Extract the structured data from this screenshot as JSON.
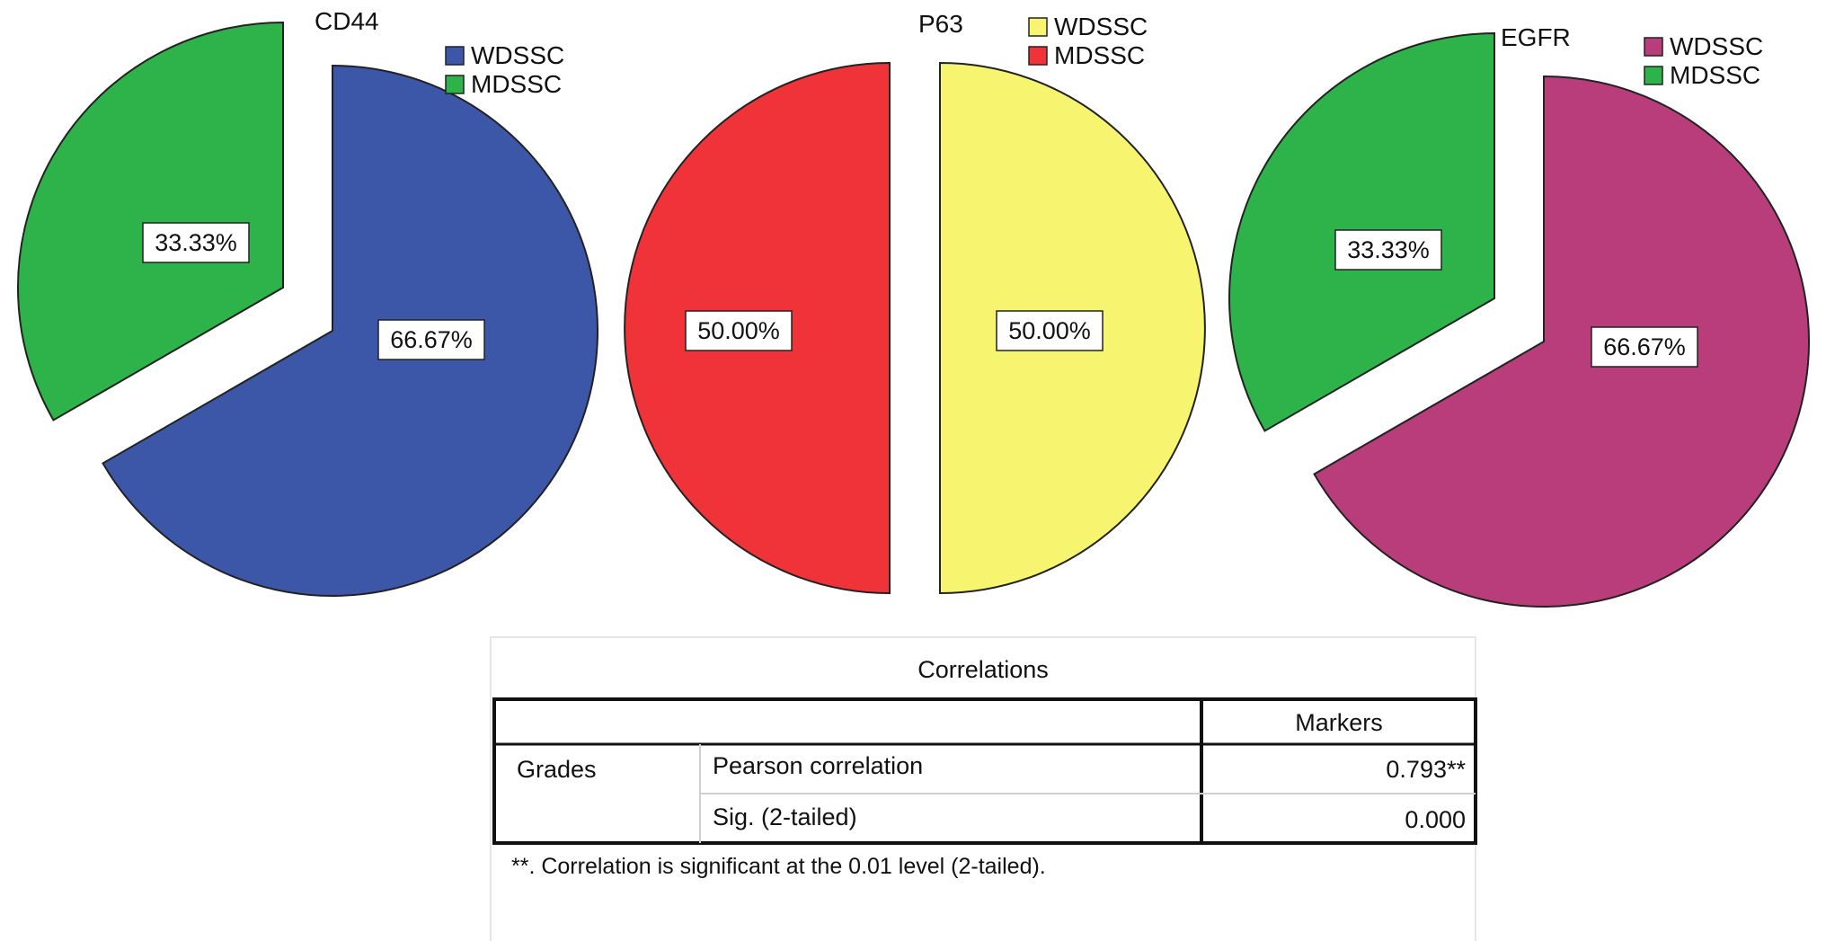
{
  "chart_data": [
    {
      "type": "pie",
      "title": "CD44",
      "legend": [
        {
          "label": "WDSSC",
          "color": "#3c56a8"
        },
        {
          "label": "MDSSC",
          "color": "#2eb34a"
        }
      ],
      "slices": [
        {
          "label": "WDSSC",
          "value": 66.67,
          "display": "66.67%",
          "color": "#3c56a8"
        },
        {
          "label": "MDSSC",
          "value": 33.33,
          "display": "33.33%",
          "color": "#2eb34a"
        }
      ]
    },
    {
      "type": "pie",
      "title": "P63",
      "legend": [
        {
          "label": "WDSSC",
          "color": "#f7f570"
        },
        {
          "label": "MDSSC",
          "color": "#ef3338"
        }
      ],
      "slices": [
        {
          "label": "WDSSC",
          "value": 50.0,
          "display": "50.00%",
          "color": "#f7f570"
        },
        {
          "label": "MDSSC",
          "value": 50.0,
          "display": "50.00%",
          "color": "#ef3338"
        }
      ]
    },
    {
      "type": "pie",
      "title": "EGFR",
      "legend": [
        {
          "label": "WDSSC",
          "color": "#b83d7a"
        },
        {
          "label": "MDSSC",
          "color": "#2eb34a"
        }
      ],
      "slices": [
        {
          "label": "WDSSC",
          "value": 66.67,
          "display": "66.67%",
          "color": "#b83d7a"
        },
        {
          "label": "MDSSC",
          "value": 33.33,
          "display": "33.33%",
          "color": "#2eb34a"
        }
      ]
    }
  ],
  "table": {
    "title": "Correlations",
    "column_header": "Markers",
    "row_group": "Grades",
    "rows": [
      {
        "label": "Pearson correlation",
        "value": "0.793**"
      },
      {
        "label": "Sig. (2-tailed)",
        "value": "0.000"
      }
    ],
    "footnote": "**. Correlation is significant at the 0.01 level (2-tailed)."
  }
}
